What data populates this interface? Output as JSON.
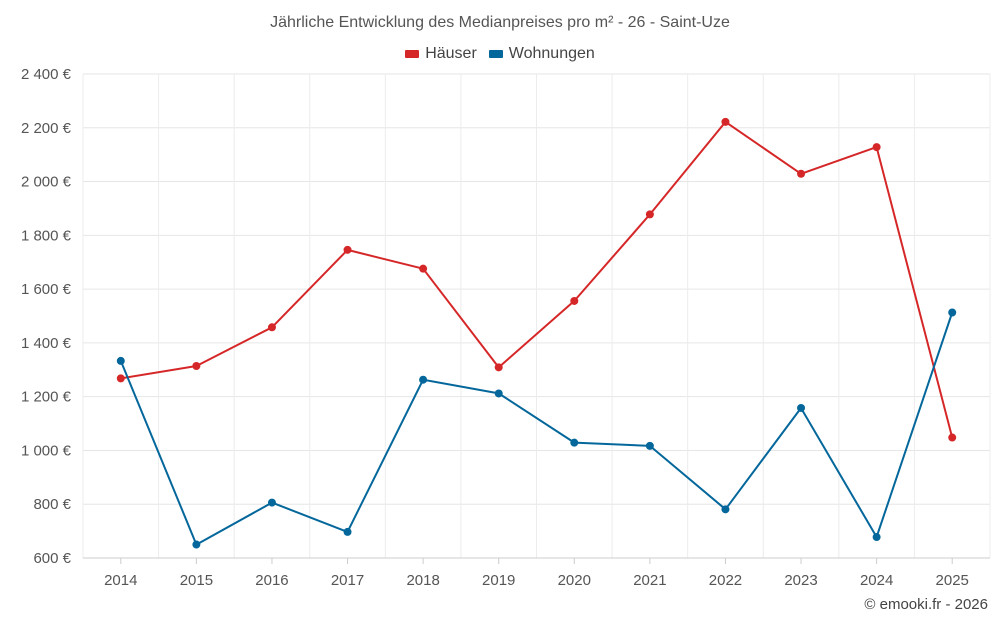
{
  "chart_data": {
    "type": "line",
    "title": "Jährliche Entwicklung des Medianpreises pro m² - 26 - Saint-Uze",
    "xlabel": "",
    "ylabel": "",
    "x": [
      "2014",
      "2015",
      "2016",
      "2017",
      "2018",
      "2019",
      "2020",
      "2021",
      "2022",
      "2023",
      "2024",
      "2025"
    ],
    "ylim": [
      600,
      2400
    ],
    "yticks": [
      600,
      800,
      1000,
      1200,
      1400,
      1600,
      1800,
      2000,
      2200,
      2400
    ],
    "ytick_labels": [
      "600 €",
      "800 €",
      "1 000 €",
      "1 200 €",
      "1 400 €",
      "1 600 €",
      "1 800 €",
      "2 000 €",
      "2 200 €",
      "2 400 €"
    ],
    "grid": true,
    "legend_position": "top-center",
    "series": [
      {
        "name": "Häuser",
        "color": "#d62728",
        "values": [
          1268,
          1314,
          1458,
          1746,
          1676,
          1309,
          1556,
          1878,
          2222,
          2029,
          2128,
          1048
        ]
      },
      {
        "name": "Wohnungen",
        "color": "#04679b",
        "values": [
          1333,
          650,
          806,
          697,
          1263,
          1212,
          1029,
          1017,
          781,
          1158,
          678,
          1513
        ]
      }
    ]
  },
  "footer": {
    "credit": "© emooki.fr - 2026"
  }
}
